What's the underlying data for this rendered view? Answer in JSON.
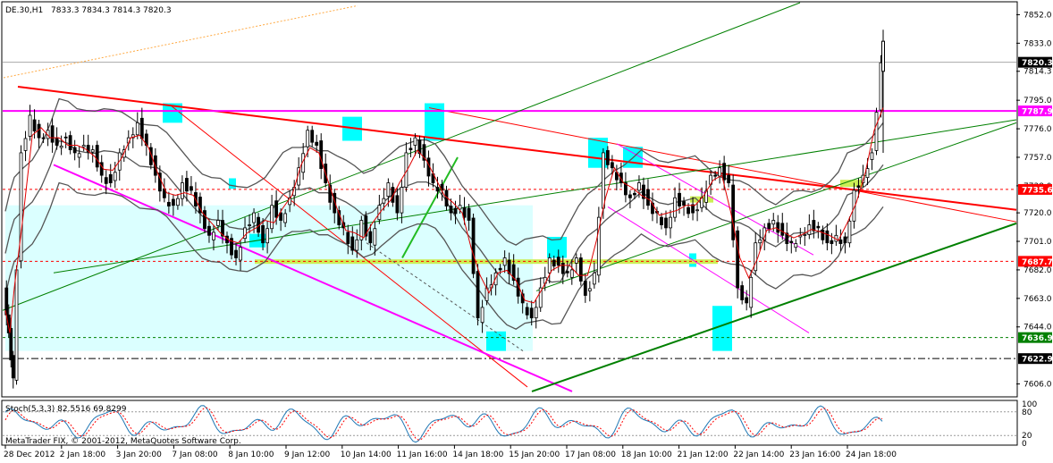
{
  "header": {
    "symbol_timeframe": "DE.30,H1",
    "ohlc": "7833.3 7834.3 7814.3 7820.3"
  },
  "copyright": "MetaTrader FIX, © 2001-2012, MetaQuotes Software Corp.",
  "colors": {
    "candle": "#000000",
    "bollinger": "#555555",
    "ema": "#e00000",
    "resistance_line": "#ff0000",
    "magenta_level": "#ff00ff",
    "green_trend": "#008000",
    "highlight_zone": "#ccffff",
    "box_marker": "#00ffff",
    "yellow_green_band": "#ccee55"
  },
  "chart_data": {
    "type": "candlestick",
    "y_axis": {
      "range": [
        7598,
        7860
      ],
      "ticks": [
        7852.0,
        7833.0,
        7814.3,
        7795.0,
        7776.0,
        7757.0,
        7738.0,
        7720.0,
        7701.0,
        7682.0,
        7663.0,
        7644.0,
        7606.0
      ],
      "tick_labels": [
        "7852.0",
        "7833.0",
        "7814.3",
        "7795.0",
        "7776.0",
        "7757.0",
        "7738.0",
        "7720.0",
        "7701.0",
        "7682.0",
        "7663.0",
        "7644.0",
        "7606.0"
      ]
    },
    "x_axis": {
      "labels": [
        "28 Dec 2012",
        "2 Jan 18:00",
        "3 Jan 20:00",
        "7 Jan 08:00",
        "8 Jan 10:00",
        "9 Jan 12:00",
        "10 Jan 14:00",
        "11 Jan 16:00",
        "14 Jan 18:00",
        "15 Jan 20:00",
        "17 Jan 08:00",
        "18 Jan 10:00",
        "21 Jan 12:00",
        "22 Jan 14:00",
        "23 Jan 16:00",
        "24 Jan 18:00"
      ]
    },
    "price_tags": [
      {
        "label": "7820.3",
        "value": 7820.3,
        "color": "#000000",
        "text_color": "#ffffff"
      },
      {
        "label": "7787.9",
        "value": 7787.9,
        "color": "#ff00ff",
        "text_color": "#ffffff"
      },
      {
        "label": "7735.6",
        "value": 7735.6,
        "color": "#ff0000",
        "text_color": "#ffffff"
      },
      {
        "label": "7687.7",
        "value": 7687.7,
        "color": "#ff0000",
        "text_color": "#ffffff"
      },
      {
        "label": "7636.9",
        "value": 7636.9,
        "color": "#008000",
        "text_color": "#ffffff"
      },
      {
        "label": "7622.9",
        "value": 7622.9,
        "color": "#000000",
        "text_color": "#ffffff"
      }
    ],
    "series": [
      {
        "name": "",
        "close_path": [
          [
            0,
            7670
          ],
          [
            1,
            7640
          ],
          [
            2,
            7610
          ],
          [
            4,
            7760
          ],
          [
            6,
            7785
          ],
          [
            8,
            7770
          ],
          [
            10,
            7775
          ],
          [
            12,
            7765
          ],
          [
            14,
            7770
          ],
          [
            16,
            7760
          ],
          [
            18,
            7765
          ],
          [
            20,
            7762
          ],
          [
            22,
            7745
          ],
          [
            24,
            7740
          ],
          [
            26,
            7760
          ],
          [
            28,
            7770
          ],
          [
            30,
            7780
          ],
          [
            32,
            7765
          ],
          [
            34,
            7745
          ],
          [
            36,
            7730
          ],
          [
            38,
            7725
          ],
          [
            40,
            7740
          ],
          [
            42,
            7735
          ],
          [
            44,
            7720
          ],
          [
            46,
            7705
          ],
          [
            48,
            7715
          ],
          [
            50,
            7700
          ],
          [
            52,
            7690
          ],
          [
            54,
            7710
          ],
          [
            56,
            7720
          ],
          [
            58,
            7700
          ],
          [
            60,
            7725
          ],
          [
            62,
            7715
          ],
          [
            64,
            7730
          ],
          [
            66,
            7750
          ],
          [
            68,
            7775
          ],
          [
            70,
            7765
          ],
          [
            72,
            7740
          ],
          [
            74,
            7720
          ],
          [
            76,
            7710
          ],
          [
            78,
            7695
          ],
          [
            80,
            7715
          ],
          [
            82,
            7700
          ],
          [
            84,
            7725
          ],
          [
            86,
            7740
          ],
          [
            88,
            7720
          ],
          [
            90,
            7760
          ],
          [
            92,
            7770
          ],
          [
            94,
            7755
          ],
          [
            96,
            7740
          ],
          [
            98,
            7735
          ],
          [
            100,
            7720
          ],
          [
            102,
            7725
          ],
          [
            104,
            7715
          ],
          [
            106,
            7650
          ],
          [
            108,
            7670
          ],
          [
            110,
            7680
          ],
          [
            112,
            7690
          ],
          [
            114,
            7675
          ],
          [
            116,
            7660
          ],
          [
            118,
            7650
          ],
          [
            120,
            7670
          ],
          [
            122,
            7690
          ],
          [
            124,
            7685
          ],
          [
            126,
            7680
          ],
          [
            128,
            7690
          ],
          [
            130,
            7665
          ],
          [
            132,
            7680
          ],
          [
            134,
            7760
          ],
          [
            136,
            7750
          ],
          [
            138,
            7740
          ],
          [
            140,
            7730
          ],
          [
            142,
            7740
          ],
          [
            144,
            7725
          ],
          [
            146,
            7720
          ],
          [
            148,
            7710
          ],
          [
            150,
            7730
          ],
          [
            152,
            7725
          ],
          [
            154,
            7720
          ],
          [
            156,
            7730
          ],
          [
            158,
            7745
          ],
          [
            160,
            7750
          ],
          [
            162,
            7740
          ],
          [
            164,
            7670
          ],
          [
            166,
            7660
          ],
          [
            168,
            7700
          ],
          [
            170,
            7710
          ],
          [
            172,
            7715
          ],
          [
            174,
            7705
          ],
          [
            176,
            7700
          ],
          [
            178,
            7705
          ],
          [
            180,
            7712
          ],
          [
            182,
            7710
          ],
          [
            184,
            7700
          ],
          [
            186,
            7705
          ],
          [
            188,
            7700
          ],
          [
            190,
            7735
          ],
          [
            192,
            7745
          ],
          [
            194,
            7760
          ],
          [
            196,
            7820
          ]
        ]
      }
    ],
    "stochastic": {
      "label": "Stoch(5,3,3) 82.5516 69.8299",
      "main": 82.5516,
      "signal": 69.8299,
      "levels": [
        80,
        20
      ],
      "level_labels": [
        "100",
        "80",
        "20",
        "0"
      ]
    }
  }
}
